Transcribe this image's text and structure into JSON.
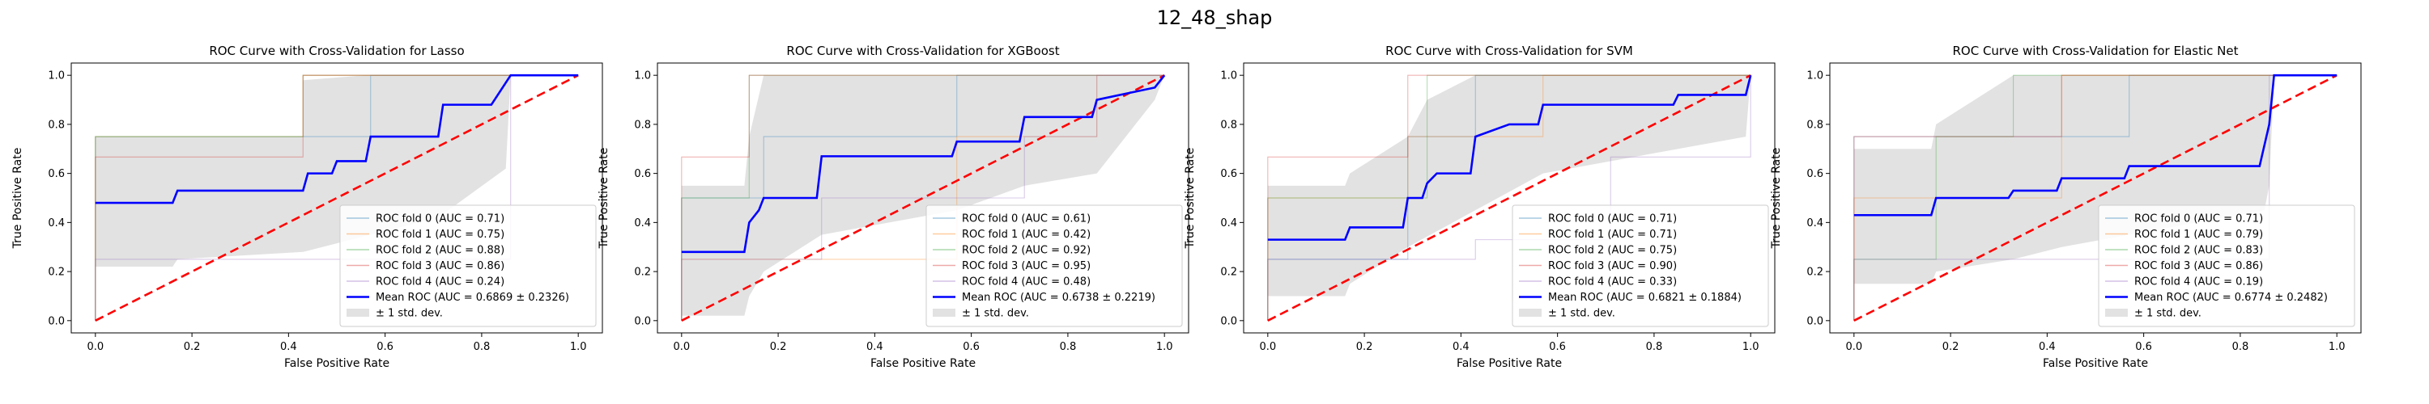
{
  "figure": {
    "suptitle": "12_48_shap"
  },
  "legend": {
    "fold_prefix": "ROC fold",
    "auc_prefix": "AUC =",
    "mean_prefix": "Mean ROC (AUC =",
    "std_label": "± 1 std. dev."
  },
  "colors": {
    "folds": [
      "#1f77b4",
      "#ff7f0e",
      "#2ca02c",
      "#d62728",
      "#9467bd"
    ],
    "mean": "#0000ff",
    "chance": "#ff0000",
    "band": "#bfbfbf"
  },
  "chart_data": [
    {
      "type": "line",
      "title": "ROC Curve with Cross-Validation for Lasso",
      "xlabel": "False Positive Rate",
      "ylabel": "True Positive Rate",
      "xlim": [
        -0.05,
        1.05
      ],
      "ylim": [
        -0.05,
        1.05
      ],
      "xticks": [
        "0.0",
        "0.2",
        "0.4",
        "0.6",
        "0.8",
        "1.0"
      ],
      "yticks": [
        "0.0",
        "0.2",
        "0.4",
        "0.6",
        "0.8",
        "1.0"
      ],
      "legend_position": "lower right",
      "folds": [
        {
          "name": "0",
          "auc": "0.71",
          "points": [
            [
              0,
              0
            ],
            [
              0,
              0.75
            ],
            [
              0.57,
              0.75
            ],
            [
              0.57,
              1
            ],
            [
              1,
              1
            ]
          ]
        },
        {
          "name": "1",
          "auc": "0.75",
          "points": [
            [
              0,
              0
            ],
            [
              0,
              0.75
            ],
            [
              0.43,
              0.75
            ],
            [
              0.43,
              1
            ],
            [
              1,
              1
            ]
          ]
        },
        {
          "name": "2",
          "auc": "0.88",
          "points": [
            [
              0,
              0
            ],
            [
              0,
              0.75
            ],
            [
              0.43,
              0.75
            ],
            [
              0.43,
              1
            ],
            [
              1,
              1
            ]
          ]
        },
        {
          "name": "3",
          "auc": "0.86",
          "points": [
            [
              0,
              0
            ],
            [
              0,
              0.667
            ],
            [
              0.43,
              0.667
            ],
            [
              0.43,
              1
            ],
            [
              1,
              1
            ]
          ]
        },
        {
          "name": "4",
          "auc": "0.24",
          "points": [
            [
              0,
              0
            ],
            [
              0,
              0.25
            ],
            [
              0.86,
              0.25
            ],
            [
              0.86,
              1
            ],
            [
              1,
              1
            ]
          ]
        }
      ],
      "mean_label": "0.6869 ± 0.2326",
      "mean_points": [
        [
          0,
          0.48
        ],
        [
          0.16,
          0.48
        ],
        [
          0.17,
          0.53
        ],
        [
          0.43,
          0.53
        ],
        [
          0.44,
          0.6
        ],
        [
          0.49,
          0.6
        ],
        [
          0.5,
          0.65
        ],
        [
          0.56,
          0.65
        ],
        [
          0.57,
          0.75
        ],
        [
          0.71,
          0.75
        ],
        [
          0.72,
          0.88
        ],
        [
          0.82,
          0.88
        ],
        [
          0.86,
          1
        ],
        [
          1,
          1
        ]
      ],
      "std_upper": [
        [
          0,
          0.75
        ],
        [
          0.43,
          0.75
        ],
        [
          0.43,
          0.98
        ],
        [
          0.56,
          1
        ],
        [
          1,
          1
        ]
      ],
      "std_lower": [
        [
          0,
          0.22
        ],
        [
          0.16,
          0.22
        ],
        [
          0.17,
          0.25
        ],
        [
          0.43,
          0.28
        ],
        [
          0.57,
          0.35
        ],
        [
          0.71,
          0.42
        ],
        [
          0.85,
          0.62
        ],
        [
          0.86,
          1
        ],
        [
          1,
          1
        ]
      ]
    },
    {
      "type": "line",
      "title": "ROC Curve with Cross-Validation for XGBoost",
      "xlabel": "False Positive Rate",
      "ylabel": "True Positive Rate",
      "xlim": [
        -0.05,
        1.05
      ],
      "ylim": [
        -0.05,
        1.05
      ],
      "xticks": [
        "0.0",
        "0.2",
        "0.4",
        "0.6",
        "0.8",
        "1.0"
      ],
      "yticks": [
        "0.0",
        "0.2",
        "0.4",
        "0.6",
        "0.8",
        "1.0"
      ],
      "legend_position": "lower right",
      "folds": [
        {
          "name": "0",
          "auc": "0.61",
          "points": [
            [
              0,
              0
            ],
            [
              0,
              0.5
            ],
            [
              0.17,
              0.5
            ],
            [
              0.17,
              0.75
            ],
            [
              0.57,
              0.75
            ],
            [
              0.57,
              1
            ],
            [
              1,
              1
            ]
          ]
        },
        {
          "name": "1",
          "auc": "0.42",
          "points": [
            [
              0,
              0
            ],
            [
              0,
              0.25
            ],
            [
              0.57,
              0.25
            ],
            [
              0.57,
              0.75
            ],
            [
              0.86,
              0.75
            ],
            [
              0.86,
              1
            ],
            [
              1,
              1
            ]
          ]
        },
        {
          "name": "2",
          "auc": "0.92",
          "points": [
            [
              0,
              0
            ],
            [
              0,
              0.5
            ],
            [
              0.14,
              0.5
            ],
            [
              0.14,
              1
            ],
            [
              1,
              1
            ]
          ]
        },
        {
          "name": "3",
          "auc": "0.95",
          "points": [
            [
              0,
              0
            ],
            [
              0,
              0.667
            ],
            [
              0.14,
              0.667
            ],
            [
              0.14,
              1
            ],
            [
              1,
              1
            ]
          ]
        },
        {
          "name": "4",
          "auc": "0.48",
          "points": [
            [
              0,
              0
            ],
            [
              0,
              0.25
            ],
            [
              0.29,
              0.25
            ],
            [
              0.29,
              0.5
            ],
            [
              0.71,
              0.5
            ],
            [
              0.71,
              0.75
            ],
            [
              0.86,
              0.75
            ],
            [
              0.86,
              1
            ],
            [
              1,
              1
            ]
          ]
        }
      ],
      "mean_label": "0.6738 ± 0.2219",
      "mean_points": [
        [
          0,
          0.28
        ],
        [
          0.13,
          0.28
        ],
        [
          0.14,
          0.4
        ],
        [
          0.16,
          0.45
        ],
        [
          0.17,
          0.5
        ],
        [
          0.28,
          0.5
        ],
        [
          0.29,
          0.67
        ],
        [
          0.56,
          0.67
        ],
        [
          0.57,
          0.73
        ],
        [
          0.7,
          0.73
        ],
        [
          0.71,
          0.83
        ],
        [
          0.85,
          0.83
        ],
        [
          0.86,
          0.9
        ],
        [
          0.98,
          0.95
        ],
        [
          1,
          1
        ]
      ],
      "std_upper": [
        [
          0,
          0.55
        ],
        [
          0.13,
          0.55
        ],
        [
          0.14,
          0.75
        ],
        [
          0.17,
          1
        ],
        [
          1,
          1
        ]
      ],
      "std_lower": [
        [
          0,
          0.02
        ],
        [
          0.13,
          0.02
        ],
        [
          0.14,
          0.1
        ],
        [
          0.17,
          0.2
        ],
        [
          0.29,
          0.35
        ],
        [
          0.57,
          0.45
        ],
        [
          0.71,
          0.55
        ],
        [
          0.86,
          0.6
        ],
        [
          0.98,
          0.9
        ],
        [
          1,
          1
        ]
      ]
    },
    {
      "type": "line",
      "title": "ROC Curve with Cross-Validation for SVM",
      "xlabel": "False Positive Rate",
      "ylabel": "True Positive Rate",
      "xlim": [
        -0.05,
        1.05
      ],
      "ylim": [
        -0.05,
        1.05
      ],
      "xticks": [
        "0.0",
        "0.2",
        "0.4",
        "0.6",
        "0.8",
        "1.0"
      ],
      "yticks": [
        "0.0",
        "0.2",
        "0.4",
        "0.6",
        "0.8",
        "1.0"
      ],
      "legend_position": "lower right",
      "folds": [
        {
          "name": "0",
          "auc": "0.71",
          "points": [
            [
              0,
              0
            ],
            [
              0,
              0.25
            ],
            [
              0.29,
              0.25
            ],
            [
              0.29,
              0.75
            ],
            [
              0.43,
              0.75
            ],
            [
              0.43,
              1
            ],
            [
              1,
              1
            ]
          ]
        },
        {
          "name": "1",
          "auc": "0.71",
          "points": [
            [
              0,
              0
            ],
            [
              0,
              0.5
            ],
            [
              0.29,
              0.5
            ],
            [
              0.29,
              0.75
            ],
            [
              0.57,
              0.75
            ],
            [
              0.57,
              1
            ],
            [
              1,
              1
            ]
          ]
        },
        {
          "name": "2",
          "auc": "0.75",
          "points": [
            [
              0,
              0
            ],
            [
              0,
              0.5
            ],
            [
              0.33,
              0.5
            ],
            [
              0.33,
              1
            ],
            [
              1,
              1
            ]
          ]
        },
        {
          "name": "3",
          "auc": "0.90",
          "points": [
            [
              0,
              0
            ],
            [
              0,
              0.667
            ],
            [
              0.29,
              0.667
            ],
            [
              0.29,
              1
            ],
            [
              1,
              1
            ]
          ]
        },
        {
          "name": "4",
          "auc": "0.33",
          "points": [
            [
              0,
              0
            ],
            [
              0,
              0.25
            ],
            [
              0.43,
              0.25
            ],
            [
              0.43,
              0.33
            ],
            [
              0.71,
              0.33
            ],
            [
              0.71,
              0.667
            ],
            [
              1,
              0.667
            ],
            [
              1,
              1
            ]
          ]
        }
      ],
      "mean_label": "0.6821 ± 0.1884",
      "mean_points": [
        [
          0,
          0.33
        ],
        [
          0.16,
          0.33
        ],
        [
          0.17,
          0.38
        ],
        [
          0.28,
          0.38
        ],
        [
          0.29,
          0.5
        ],
        [
          0.32,
          0.5
        ],
        [
          0.33,
          0.56
        ],
        [
          0.35,
          0.6
        ],
        [
          0.42,
          0.6
        ],
        [
          0.43,
          0.75
        ],
        [
          0.5,
          0.8
        ],
        [
          0.56,
          0.8
        ],
        [
          0.57,
          0.88
        ],
        [
          0.84,
          0.88
        ],
        [
          0.85,
          0.92
        ],
        [
          0.99,
          0.92
        ],
        [
          1,
          1
        ]
      ],
      "std_upper": [
        [
          0,
          0.55
        ],
        [
          0.16,
          0.55
        ],
        [
          0.17,
          0.6
        ],
        [
          0.29,
          0.75
        ],
        [
          0.33,
          0.9
        ],
        [
          0.43,
          1
        ],
        [
          1,
          1
        ]
      ],
      "std_lower": [
        [
          0,
          0.1
        ],
        [
          0.16,
          0.1
        ],
        [
          0.17,
          0.15
        ],
        [
          0.29,
          0.3
        ],
        [
          0.43,
          0.45
        ],
        [
          0.57,
          0.6
        ],
        [
          0.85,
          0.7
        ],
        [
          0.99,
          0.75
        ],
        [
          1,
          1
        ]
      ]
    },
    {
      "type": "line",
      "title": "ROC Curve with Cross-Validation for Elastic Net",
      "xlabel": "False Positive Rate",
      "ylabel": "True Positive Rate",
      "xlim": [
        -0.05,
        1.05
      ],
      "ylim": [
        -0.05,
        1.05
      ],
      "xticks": [
        "0.0",
        "0.2",
        "0.4",
        "0.6",
        "0.8",
        "1.0"
      ],
      "yticks": [
        "0.0",
        "0.2",
        "0.4",
        "0.6",
        "0.8",
        "1.0"
      ],
      "legend_position": "lower right",
      "folds": [
        {
          "name": "0",
          "auc": "0.71",
          "points": [
            [
              0,
              0
            ],
            [
              0,
              0.75
            ],
            [
              0.57,
              0.75
            ],
            [
              0.57,
              1
            ],
            [
              1,
              1
            ]
          ]
        },
        {
          "name": "1",
          "auc": "0.79",
          "points": [
            [
              0,
              0
            ],
            [
              0,
              0.5
            ],
            [
              0.43,
              0.5
            ],
            [
              0.43,
              1
            ],
            [
              1,
              1
            ]
          ]
        },
        {
          "name": "2",
          "auc": "0.83",
          "points": [
            [
              0,
              0
            ],
            [
              0,
              0.25
            ],
            [
              0.17,
              0.25
            ],
            [
              0.17,
              0.75
            ],
            [
              0.33,
              0.75
            ],
            [
              0.33,
              1
            ],
            [
              1,
              1
            ]
          ]
        },
        {
          "name": "3",
          "auc": "0.86",
          "points": [
            [
              0,
              0
            ],
            [
              0,
              0.75
            ],
            [
              0.43,
              0.75
            ],
            [
              0.43,
              1
            ],
            [
              1,
              1
            ]
          ]
        },
        {
          "name": "4",
          "auc": "0.19",
          "points": [
            [
              0,
              0
            ],
            [
              0,
              0.25
            ],
            [
              0.86,
              0.25
            ],
            [
              0.86,
              1
            ],
            [
              1,
              1
            ]
          ]
        }
      ],
      "mean_label": "0.6774 ± 0.2482",
      "mean_points": [
        [
          0,
          0.43
        ],
        [
          0.16,
          0.43
        ],
        [
          0.17,
          0.5
        ],
        [
          0.32,
          0.5
        ],
        [
          0.33,
          0.53
        ],
        [
          0.42,
          0.53
        ],
        [
          0.43,
          0.58
        ],
        [
          0.56,
          0.58
        ],
        [
          0.57,
          0.63
        ],
        [
          0.84,
          0.63
        ],
        [
          0.86,
          0.8
        ],
        [
          0.87,
          1
        ],
        [
          1,
          1
        ]
      ],
      "std_upper": [
        [
          0,
          0.7
        ],
        [
          0.16,
          0.7
        ],
        [
          0.17,
          0.8
        ],
        [
          0.33,
          1
        ],
        [
          1,
          1
        ]
      ],
      "std_lower": [
        [
          0,
          0.15
        ],
        [
          0.16,
          0.15
        ],
        [
          0.17,
          0.2
        ],
        [
          0.33,
          0.25
        ],
        [
          0.43,
          0.3
        ],
        [
          0.57,
          0.35
        ],
        [
          0.85,
          0.45
        ],
        [
          0.86,
          0.55
        ],
        [
          0.87,
          1
        ],
        [
          1,
          1
        ]
      ]
    }
  ]
}
